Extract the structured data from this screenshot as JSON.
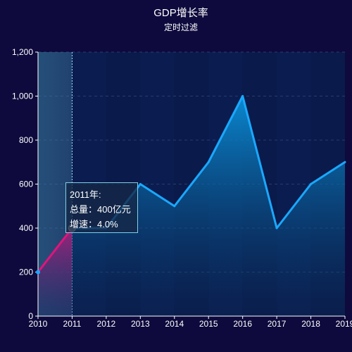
{
  "chart_data": {
    "type": "line",
    "title": "GDP增长率",
    "subtitle": "定时过滤",
    "categories": [
      "2010",
      "2011",
      "2012",
      "2013",
      "2014",
      "2015",
      "2016",
      "2017",
      "2018",
      "2019"
    ],
    "series": [
      {
        "values": [
          200,
          400,
          400,
          600,
          500,
          700,
          1000,
          400,
          600,
          700
        ]
      }
    ],
    "ylim": [
      0,
      1200
    ],
    "yticks": [
      "0",
      "200",
      "400",
      "600",
      "800",
      "1,000",
      "1,200"
    ],
    "grid": true,
    "highlight_index": 1,
    "colors": {
      "background": "#0e0a3d",
      "line": "#1aa8ff",
      "highlight_line": "#e0147a",
      "axis": "#ffffff"
    }
  },
  "tooltip": {
    "line1": "2011年:",
    "line2": "总量：400亿元",
    "line3": "增速：4.0%"
  }
}
